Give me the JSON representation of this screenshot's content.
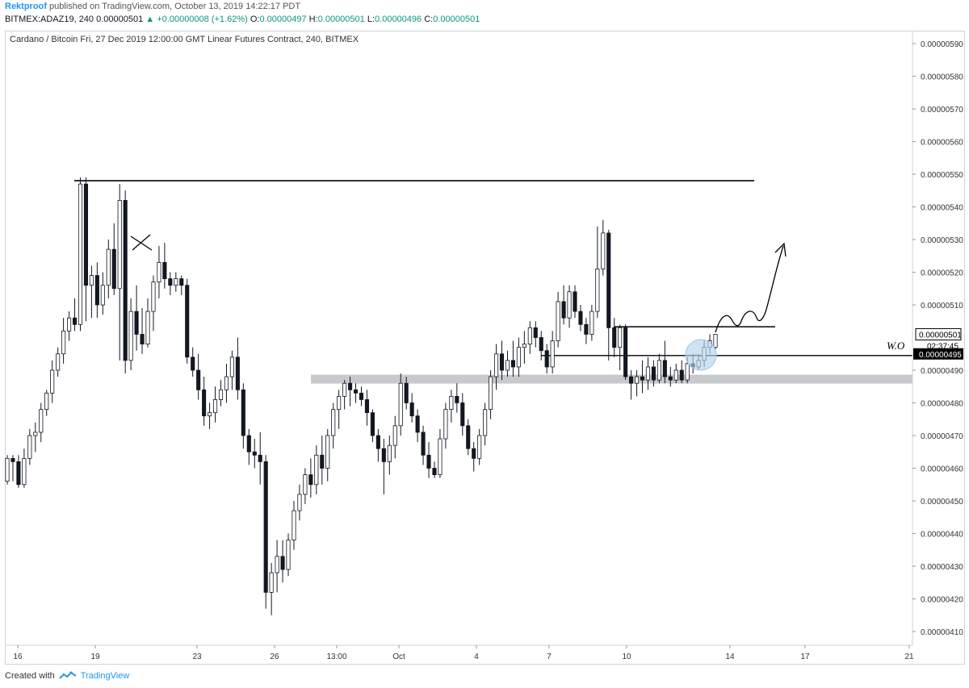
{
  "header": {
    "author": "Rektproof",
    "published_text": "published on TradingView.com, October 13, 2019 14:22:17 PDT",
    "symbol": "BITMEX:ADAZ19, 240",
    "last": "0.00000501",
    "change": "▲ +0.00000008 (+1.62%)",
    "o_label": "O:",
    "o_value": "0.00000497",
    "h_label": "H:",
    "h_value": "0.00000501",
    "l_label": "L:",
    "l_value": "0.00000496",
    "c_label": "C:",
    "c_value": "0.00000501"
  },
  "footer": {
    "created_with": "Created with",
    "brand": "TradingView"
  },
  "colors": {
    "candle": "#131722",
    "support_zone": "#c8c9cc",
    "highlight": "#b3d4ee",
    "axis_text": "#333333",
    "label_bg": "#000000"
  },
  "chart_data": {
    "type": "candlestick",
    "title": "Cardano / Bitcoin Fri, 27 Dec 2019 12:00:00 GMT Linear Futures Contract, 240, BITMEX",
    "xlabel": "",
    "ylabel": "",
    "ylim": [
      4.05e-06,
      5.95e-06
    ],
    "grid": false,
    "y_ticks": [
      "0.00000590",
      "0.00000580",
      "0.00000570",
      "0.00000560",
      "0.00000550",
      "0.00000540",
      "0.00000530",
      "0.00000520",
      "0.00000510",
      "0.00000490",
      "0.00000480",
      "0.00000470",
      "0.00000460",
      "0.00000450",
      "0.00000440",
      "0.00000430",
      "0.00000420",
      "0.00000410"
    ],
    "x_ticks": [
      "16",
      "19",
      "23",
      "26",
      "13:00",
      "Oct",
      "4",
      "7",
      "10",
      "14",
      "17",
      "21"
    ],
    "price_labels": [
      {
        "value": "0.00000501",
        "style": "outline"
      },
      {
        "value": "02:37:45",
        "style": "plain"
      },
      {
        "value": "0.00000495",
        "style": "filled"
      }
    ],
    "annotations": [
      "W.O"
    ],
    "levels": {
      "resistance_high": 5.48e-06,
      "local_resistance": 5.033e-06,
      "breakout_line": 4.945e-06,
      "support_zone": [
        4.862e-06,
        4.874e-06
      ]
    },
    "ohlc": [
      {
        "o": 4.56,
        "h": 4.64,
        "l": 4.55,
        "c": 4.63
      },
      {
        "o": 4.63,
        "h": 4.64,
        "l": 4.56,
        "c": 4.62
      },
      {
        "o": 4.62,
        "h": 4.64,
        "l": 4.54,
        "c": 4.55
      },
      {
        "o": 4.55,
        "h": 4.66,
        "l": 4.54,
        "c": 4.63
      },
      {
        "o": 4.63,
        "h": 4.72,
        "l": 4.61,
        "c": 4.7
      },
      {
        "o": 4.7,
        "h": 4.74,
        "l": 4.65,
        "c": 4.71
      },
      {
        "o": 4.71,
        "h": 4.8,
        "l": 4.68,
        "c": 4.78
      },
      {
        "o": 4.78,
        "h": 4.84,
        "l": 4.76,
        "c": 4.83
      },
      {
        "o": 4.83,
        "h": 4.93,
        "l": 4.8,
        "c": 4.9
      },
      {
        "o": 4.9,
        "h": 4.97,
        "l": 4.88,
        "c": 4.95
      },
      {
        "o": 4.95,
        "h": 5.06,
        "l": 4.92,
        "c": 5.02
      },
      {
        "o": 5.02,
        "h": 5.08,
        "l": 4.99,
        "c": 5.06
      },
      {
        "o": 5.06,
        "h": 5.12,
        "l": 5.02,
        "c": 5.04
      },
      {
        "o": 5.04,
        "h": 5.49,
        "l": 5.02,
        "c": 5.47
      },
      {
        "o": 5.47,
        "h": 5.49,
        "l": 5.05,
        "c": 5.16
      },
      {
        "o": 5.16,
        "h": 5.22,
        "l": 5.06,
        "c": 5.19
      },
      {
        "o": 5.19,
        "h": 5.23,
        "l": 5.06,
        "c": 5.1
      },
      {
        "o": 5.1,
        "h": 5.2,
        "l": 5.07,
        "c": 5.16
      },
      {
        "o": 5.16,
        "h": 5.3,
        "l": 5.12,
        "c": 5.27
      },
      {
        "o": 5.27,
        "h": 5.35,
        "l": 5.13,
        "c": 5.15
      },
      {
        "o": 5.15,
        "h": 5.47,
        "l": 4.93,
        "c": 5.42
      },
      {
        "o": 5.42,
        "h": 5.45,
        "l": 4.89,
        "c": 4.93
      },
      {
        "o": 4.93,
        "h": 5.12,
        "l": 4.9,
        "c": 5.08
      },
      {
        "o": 5.08,
        "h": 5.16,
        "l": 4.96,
        "c": 5.01
      },
      {
        "o": 5.01,
        "h": 5.09,
        "l": 4.95,
        "c": 4.98
      },
      {
        "o": 4.98,
        "h": 5.12,
        "l": 4.97,
        "c": 5.08
      },
      {
        "o": 5.08,
        "h": 5.19,
        "l": 5.02,
        "c": 5.17
      },
      {
        "o": 5.17,
        "h": 5.28,
        "l": 5.12,
        "c": 5.23
      },
      {
        "o": 5.23,
        "h": 5.29,
        "l": 5.15,
        "c": 5.18
      },
      {
        "o": 5.18,
        "h": 5.2,
        "l": 5.13,
        "c": 5.16
      },
      {
        "o": 5.16,
        "h": 5.2,
        "l": 5.14,
        "c": 5.18
      },
      {
        "o": 5.18,
        "h": 5.19,
        "l": 5.13,
        "c": 5.16
      },
      {
        "o": 5.16,
        "h": 5.18,
        "l": 4.92,
        "c": 4.94
      },
      {
        "o": 4.94,
        "h": 4.97,
        "l": 4.88,
        "c": 4.9
      },
      {
        "o": 4.9,
        "h": 4.95,
        "l": 4.81,
        "c": 4.84
      },
      {
        "o": 4.84,
        "h": 4.88,
        "l": 4.73,
        "c": 4.76
      },
      {
        "o": 4.76,
        "h": 4.8,
        "l": 4.72,
        "c": 4.77
      },
      {
        "o": 4.77,
        "h": 4.85,
        "l": 4.74,
        "c": 4.81
      },
      {
        "o": 4.81,
        "h": 4.87,
        "l": 4.79,
        "c": 4.84
      },
      {
        "o": 4.84,
        "h": 4.92,
        "l": 4.8,
        "c": 4.88
      },
      {
        "o": 4.88,
        "h": 4.96,
        "l": 4.84,
        "c": 4.94
      },
      {
        "o": 4.94,
        "h": 5.0,
        "l": 4.81,
        "c": 4.84
      },
      {
        "o": 4.84,
        "h": 4.86,
        "l": 4.66,
        "c": 4.7
      },
      {
        "o": 4.7,
        "h": 4.72,
        "l": 4.61,
        "c": 4.65
      },
      {
        "o": 4.65,
        "h": 4.69,
        "l": 4.6,
        "c": 4.64
      },
      {
        "o": 4.64,
        "h": 4.71,
        "l": 4.55,
        "c": 4.62
      },
      {
        "o": 4.62,
        "h": 4.64,
        "l": 4.17,
        "c": 4.22
      },
      {
        "o": 4.22,
        "h": 4.31,
        "l": 4.15,
        "c": 4.28
      },
      {
        "o": 4.28,
        "h": 4.38,
        "l": 4.22,
        "c": 4.33
      },
      {
        "o": 4.33,
        "h": 4.38,
        "l": 4.25,
        "c": 4.29
      },
      {
        "o": 4.29,
        "h": 4.4,
        "l": 4.27,
        "c": 4.38
      },
      {
        "o": 4.38,
        "h": 4.5,
        "l": 4.35,
        "c": 4.47
      },
      {
        "o": 4.47,
        "h": 4.55,
        "l": 4.44,
        "c": 4.52
      },
      {
        "o": 4.52,
        "h": 4.6,
        "l": 4.49,
        "c": 4.58
      },
      {
        "o": 4.58,
        "h": 4.63,
        "l": 4.51,
        "c": 4.55
      },
      {
        "o": 4.55,
        "h": 4.67,
        "l": 4.52,
        "c": 4.64
      },
      {
        "o": 4.64,
        "h": 4.7,
        "l": 4.55,
        "c": 4.6
      },
      {
        "o": 4.6,
        "h": 4.72,
        "l": 4.56,
        "c": 4.7
      },
      {
        "o": 4.7,
        "h": 4.8,
        "l": 4.66,
        "c": 4.78
      },
      {
        "o": 4.78,
        "h": 4.84,
        "l": 4.72,
        "c": 4.82
      },
      {
        "o": 4.82,
        "h": 4.87,
        "l": 4.78,
        "c": 4.86
      },
      {
        "o": 4.86,
        "h": 4.88,
        "l": 4.79,
        "c": 4.84
      },
      {
        "o": 4.84,
        "h": 4.86,
        "l": 4.8,
        "c": 4.83
      },
      {
        "o": 4.83,
        "h": 4.85,
        "l": 4.79,
        "c": 4.81
      },
      {
        "o": 4.81,
        "h": 4.84,
        "l": 4.73,
        "c": 4.77
      },
      {
        "o": 4.77,
        "h": 4.78,
        "l": 4.68,
        "c": 4.7
      },
      {
        "o": 4.7,
        "h": 4.72,
        "l": 4.62,
        "c": 4.66
      },
      {
        "o": 4.66,
        "h": 4.69,
        "l": 4.52,
        "c": 4.62
      },
      {
        "o": 4.62,
        "h": 4.7,
        "l": 4.58,
        "c": 4.67
      },
      {
        "o": 4.67,
        "h": 4.76,
        "l": 4.63,
        "c": 4.73
      },
      {
        "o": 4.73,
        "h": 4.89,
        "l": 4.7,
        "c": 4.86
      },
      {
        "o": 4.86,
        "h": 4.88,
        "l": 4.78,
        "c": 4.8
      },
      {
        "o": 4.8,
        "h": 4.83,
        "l": 4.74,
        "c": 4.76
      },
      {
        "o": 4.76,
        "h": 4.78,
        "l": 4.68,
        "c": 4.71
      },
      {
        "o": 4.71,
        "h": 4.73,
        "l": 4.61,
        "c": 4.64
      },
      {
        "o": 4.64,
        "h": 4.68,
        "l": 4.57,
        "c": 4.6
      },
      {
        "o": 4.6,
        "h": 4.62,
        "l": 4.57,
        "c": 4.58
      },
      {
        "o": 4.58,
        "h": 4.72,
        "l": 4.57,
        "c": 4.69
      },
      {
        "o": 4.69,
        "h": 4.8,
        "l": 4.66,
        "c": 4.78
      },
      {
        "o": 4.78,
        "h": 4.84,
        "l": 4.74,
        "c": 4.82
      },
      {
        "o": 4.82,
        "h": 4.86,
        "l": 4.77,
        "c": 4.8
      },
      {
        "o": 4.8,
        "h": 4.83,
        "l": 4.7,
        "c": 4.73
      },
      {
        "o": 4.73,
        "h": 4.75,
        "l": 4.64,
        "c": 4.66
      },
      {
        "o": 4.66,
        "h": 4.68,
        "l": 4.59,
        "c": 4.63
      },
      {
        "o": 4.63,
        "h": 4.72,
        "l": 4.61,
        "c": 4.7
      },
      {
        "o": 4.7,
        "h": 4.8,
        "l": 4.67,
        "c": 4.78
      },
      {
        "o": 4.78,
        "h": 4.9,
        "l": 4.75,
        "c": 4.88
      },
      {
        "o": 4.88,
        "h": 4.98,
        "l": 4.84,
        "c": 4.95
      },
      {
        "o": 4.95,
        "h": 4.99,
        "l": 4.87,
        "c": 4.9
      },
      {
        "o": 4.9,
        "h": 4.96,
        "l": 4.88,
        "c": 4.93
      },
      {
        "o": 4.93,
        "h": 4.99,
        "l": 4.88,
        "c": 4.91
      },
      {
        "o": 4.91,
        "h": 5.0,
        "l": 4.88,
        "c": 4.97
      },
      {
        "o": 4.97,
        "h": 5.02,
        "l": 4.92,
        "c": 4.98
      },
      {
        "o": 4.98,
        "h": 5.05,
        "l": 4.95,
        "c": 5.03
      },
      {
        "o": 5.03,
        "h": 5.05,
        "l": 4.97,
        "c": 5.0
      },
      {
        "o": 5.0,
        "h": 5.02,
        "l": 4.93,
        "c": 4.96
      },
      {
        "o": 4.96,
        "h": 4.98,
        "l": 4.89,
        "c": 4.91
      },
      {
        "o": 4.91,
        "h": 5.02,
        "l": 4.89,
        "c": 4.99
      },
      {
        "o": 4.99,
        "h": 5.14,
        "l": 4.97,
        "c": 5.11
      },
      {
        "o": 5.11,
        "h": 5.16,
        "l": 5.04,
        "c": 5.06
      },
      {
        "o": 5.06,
        "h": 5.16,
        "l": 5.03,
        "c": 5.14
      },
      {
        "o": 5.14,
        "h": 5.16,
        "l": 5.06,
        "c": 5.08
      },
      {
        "o": 5.08,
        "h": 5.1,
        "l": 5.02,
        "c": 5.04
      },
      {
        "o": 5.04,
        "h": 5.06,
        "l": 4.98,
        "c": 5.01
      },
      {
        "o": 5.01,
        "h": 5.1,
        "l": 4.99,
        "c": 5.08
      },
      {
        "o": 5.08,
        "h": 5.34,
        "l": 5.06,
        "c": 5.21
      },
      {
        "o": 5.21,
        "h": 5.36,
        "l": 5.19,
        "c": 5.32
      },
      {
        "o": 5.32,
        "h": 5.33,
        "l": 4.93,
        "c": 5.03
      },
      {
        "o": 5.03,
        "h": 5.06,
        "l": 4.94,
        "c": 4.97
      },
      {
        "o": 4.97,
        "h": 5.04,
        "l": 4.9,
        "c": 5.03
      },
      {
        "o": 5.03,
        "h": 5.04,
        "l": 4.87,
        "c": 4.88
      },
      {
        "o": 4.88,
        "h": 4.9,
        "l": 4.81,
        "c": 4.86
      },
      {
        "o": 4.86,
        "h": 4.9,
        "l": 4.82,
        "c": 4.88
      },
      {
        "o": 4.88,
        "h": 4.93,
        "l": 4.83,
        "c": 4.87
      },
      {
        "o": 4.87,
        "h": 4.94,
        "l": 4.84,
        "c": 4.91
      },
      {
        "o": 4.91,
        "h": 4.93,
        "l": 4.85,
        "c": 4.87
      },
      {
        "o": 4.87,
        "h": 4.95,
        "l": 4.86,
        "c": 4.93
      },
      {
        "o": 4.93,
        "h": 4.99,
        "l": 4.86,
        "c": 4.88
      },
      {
        "o": 4.88,
        "h": 4.91,
        "l": 4.85,
        "c": 4.87
      },
      {
        "o": 4.87,
        "h": 4.92,
        "l": 4.86,
        "c": 4.9
      },
      {
        "o": 4.9,
        "h": 4.93,
        "l": 4.86,
        "c": 4.87
      },
      {
        "o": 4.87,
        "h": 4.94,
        "l": 4.86,
        "c": 4.92
      },
      {
        "o": 4.92,
        "h": 4.95,
        "l": 4.89,
        "c": 4.91
      },
      {
        "o": 4.91,
        "h": 4.95,
        "l": 4.9,
        "c": 4.93
      },
      {
        "o": 4.93,
        "h": 4.99,
        "l": 4.91,
        "c": 4.97
      },
      {
        "o": 4.97,
        "h": 5.01,
        "l": 4.95,
        "c": 4.99
      },
      {
        "o": 4.97,
        "h": 5.01,
        "l": 4.96,
        "c": 5.01
      }
    ],
    "ohlc_unit": "1e-6"
  }
}
